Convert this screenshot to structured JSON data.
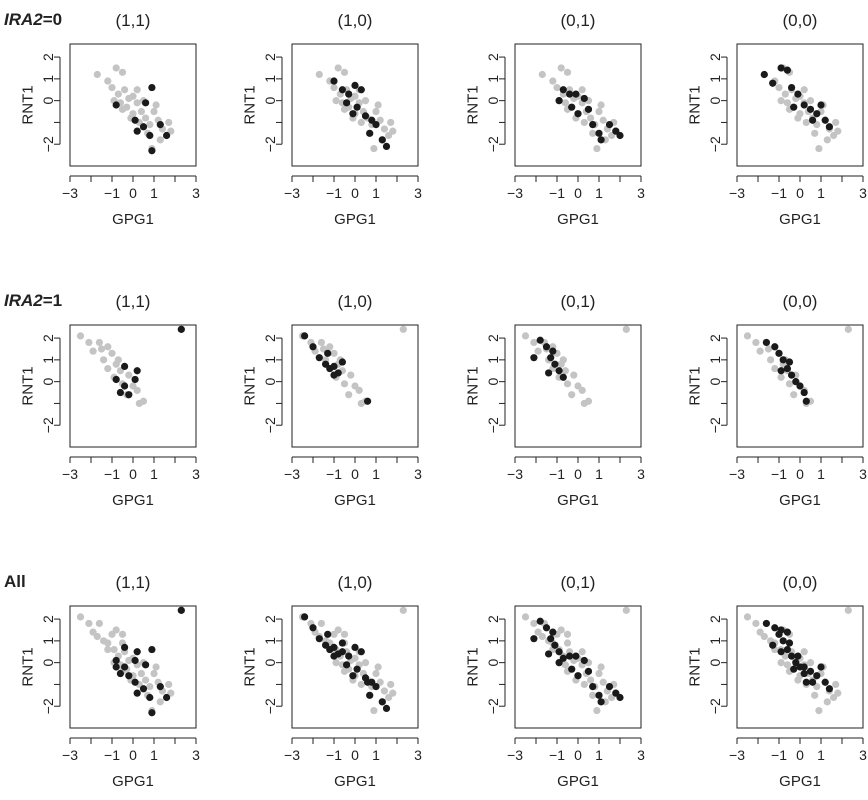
{
  "colors": {
    "background": "#ffffff",
    "axis": "#222222",
    "grey": "#c4c4c4",
    "black": "#1a1a1a"
  },
  "chart_data": {
    "type": "scatter",
    "xlabel": "GPG1",
    "ylabel": "RNT1",
    "x_ticks": [
      "−3",
      "−1",
      "0",
      "1",
      "3"
    ],
    "x_tick_values": [
      -3,
      -2,
      -1,
      0,
      1,
      2,
      3
    ],
    "y_ticks": [
      "−2",
      "0",
      "1",
      "2"
    ],
    "y_tick_values": [
      -2,
      -1,
      0,
      1,
      2
    ],
    "xlim": [
      -3,
      3
    ],
    "ylim": [
      -3,
      2.6
    ],
    "grid": false,
    "panel_titles": [
      "(1,1)",
      "(1,0)",
      "(0,1)",
      "(0,0)"
    ],
    "rows": [
      {
        "label_prefix": "IRA2",
        "label_suffix": "=0",
        "background": [
          [
            -1.7,
            1.2
          ],
          [
            -1.2,
            0.9
          ],
          [
            -0.8,
            1.5
          ],
          [
            -0.5,
            1.3
          ],
          [
            -1.0,
            0.6
          ],
          [
            -0.7,
            0.3
          ],
          [
            -0.4,
            0.5
          ],
          [
            -0.2,
            0.1
          ],
          [
            -0.6,
            -0.1
          ],
          [
            -0.3,
            -0.3
          ],
          [
            0.0,
            0.2
          ],
          [
            0.2,
            -0.1
          ],
          [
            0.4,
            -0.5
          ],
          [
            0.0,
            -0.6
          ],
          [
            0.6,
            -0.8
          ],
          [
            0.8,
            -1.1
          ],
          [
            1.0,
            -0.5
          ],
          [
            1.2,
            -0.9
          ],
          [
            1.4,
            -1.3
          ],
          [
            1.6,
            -1.6
          ],
          [
            1.8,
            -1.4
          ],
          [
            1.3,
            -1.8
          ],
          [
            0.9,
            -2.2
          ],
          [
            0.7,
            -1.5
          ],
          [
            0.3,
            -1.0
          ],
          [
            -0.1,
            -0.8
          ],
          [
            -0.5,
            -0.4
          ],
          [
            0.5,
            0.0
          ],
          [
            0.2,
            0.5
          ],
          [
            -0.9,
            0.0
          ],
          [
            1.7,
            -1.0
          ],
          [
            1.1,
            -0.2
          ]
        ],
        "panels": [
          [
            [
              -0.8,
              -0.2
            ],
            [
              0.1,
              -0.9
            ],
            [
              0.5,
              -1.2
            ],
            [
              0.9,
              0.6
            ],
            [
              0.6,
              -0.1
            ],
            [
              1.3,
              -1.1
            ],
            [
              1.6,
              -1.6
            ],
            [
              0.8,
              -1.6
            ],
            [
              0.9,
              -2.3
            ],
            [
              0.2,
              -1.4
            ]
          ],
          [
            [
              -1.0,
              0.9
            ],
            [
              -0.6,
              0.5
            ],
            [
              -0.3,
              0.3
            ],
            [
              0.0,
              0.7
            ],
            [
              0.3,
              0.5
            ],
            [
              -0.4,
              -0.1
            ],
            [
              0.1,
              -0.3
            ],
            [
              0.5,
              -0.7
            ],
            [
              0.8,
              -0.9
            ],
            [
              1.0,
              -1.1
            ],
            [
              0.7,
              -1.5
            ],
            [
              1.3,
              -1.8
            ],
            [
              1.5,
              -2.1
            ],
            [
              -0.1,
              -0.6
            ]
          ],
          [
            [
              -0.7,
              0.5
            ],
            [
              -0.4,
              0.3
            ],
            [
              -0.1,
              0.3
            ],
            [
              0.3,
              0.1
            ],
            [
              0.5,
              -0.4
            ],
            [
              -0.3,
              -0.3
            ],
            [
              0.0,
              -0.6
            ],
            [
              0.7,
              -1.1
            ],
            [
              1.0,
              -1.5
            ],
            [
              1.5,
              -1.1
            ],
            [
              1.8,
              -1.4
            ],
            [
              2.0,
              -1.6
            ],
            [
              1.1,
              -1.8
            ],
            [
              -0.9,
              0.0
            ]
          ],
          [
            [
              -1.7,
              1.2
            ],
            [
              -1.3,
              0.8
            ],
            [
              -0.9,
              1.5
            ],
            [
              -0.6,
              1.4
            ],
            [
              -0.4,
              0.6
            ],
            [
              -0.1,
              0.3
            ],
            [
              0.2,
              -0.2
            ],
            [
              0.5,
              -0.4
            ],
            [
              0.8,
              -0.6
            ],
            [
              1.0,
              -0.2
            ],
            [
              1.2,
              -0.9
            ],
            [
              0.6,
              -0.9
            ],
            [
              -0.3,
              -0.3
            ],
            [
              1.4,
              -1.2
            ]
          ]
        ]
      },
      {
        "label_prefix": "IRA2",
        "label_suffix": "=1",
        "background": [
          [
            -2.5,
            2.1
          ],
          [
            -2.1,
            1.8
          ],
          [
            -1.9,
            1.4
          ],
          [
            -1.6,
            1.8
          ],
          [
            -1.4,
            1.0
          ],
          [
            -1.2,
            1.6
          ],
          [
            -1.0,
            1.3
          ],
          [
            -0.8,
            0.8
          ],
          [
            -0.6,
            0.5
          ],
          [
            -1.2,
            0.6
          ],
          [
            -0.9,
            0.2
          ],
          [
            -0.5,
            -0.1
          ],
          [
            -0.2,
            0.3
          ],
          [
            0.0,
            -0.2
          ],
          [
            -0.3,
            -0.6
          ],
          [
            0.2,
            -0.4
          ],
          [
            0.5,
            -0.9
          ],
          [
            0.3,
            -1.0
          ],
          [
            -0.7,
            1.0
          ],
          [
            -1.5,
            1.5
          ],
          [
            2.3,
            2.4
          ]
        ],
        "panels": [
          [
            [
              2.3,
              2.4
            ],
            [
              -0.8,
              0.1
            ],
            [
              -0.4,
              -0.2
            ],
            [
              -0.2,
              -0.6
            ],
            [
              0.1,
              0.1
            ],
            [
              0.2,
              0.5
            ],
            [
              -0.4,
              0.7
            ],
            [
              -0.6,
              -0.5
            ]
          ],
          [
            [
              -2.4,
              2.1
            ],
            [
              -2.0,
              1.6
            ],
            [
              -1.7,
              1.1
            ],
            [
              -1.4,
              0.8
            ],
            [
              -1.2,
              0.6
            ],
            [
              -1.0,
              0.7
            ],
            [
              -0.8,
              0.4
            ],
            [
              -1.3,
              1.3
            ],
            [
              0.6,
              -0.9
            ],
            [
              -0.6,
              0.9
            ],
            [
              -1.0,
              0.3
            ]
          ],
          [
            [
              -1.8,
              1.9
            ],
            [
              -1.5,
              1.6
            ],
            [
              -2.1,
              1.1
            ],
            [
              -1.3,
              1.1
            ],
            [
              -1.1,
              0.8
            ],
            [
              -0.9,
              0.5
            ],
            [
              -0.7,
              0.2
            ],
            [
              -1.2,
              1.4
            ],
            [
              -1.4,
              0.4
            ]
          ],
          [
            [
              -1.6,
              1.8
            ],
            [
              -1.2,
              1.6
            ],
            [
              -1.0,
              1.3
            ],
            [
              -0.8,
              1.0
            ],
            [
              -0.6,
              0.6
            ],
            [
              -0.4,
              0.3
            ],
            [
              -0.2,
              0.0
            ],
            [
              0.0,
              -0.2
            ],
            [
              0.2,
              -0.5
            ],
            [
              0.3,
              -0.9
            ],
            [
              -0.9,
              0.5
            ],
            [
              -0.5,
              0.9
            ]
          ]
        ]
      },
      {
        "label_prefix": "All",
        "label_suffix": "",
        "background": [
          [
            -2.5,
            2.1
          ],
          [
            -2.1,
            1.8
          ],
          [
            -1.9,
            1.4
          ],
          [
            -1.7,
            1.2
          ],
          [
            -1.6,
            1.8
          ],
          [
            -1.4,
            1.0
          ],
          [
            -1.2,
            0.9
          ],
          [
            -1.0,
            1.3
          ],
          [
            -0.8,
            1.5
          ],
          [
            -0.5,
            1.3
          ],
          [
            -0.9,
            0.6
          ],
          [
            -0.7,
            0.3
          ],
          [
            -0.4,
            0.5
          ],
          [
            -0.2,
            0.1
          ],
          [
            -0.6,
            -0.1
          ],
          [
            -0.3,
            -0.3
          ],
          [
            0.0,
            0.2
          ],
          [
            0.2,
            -0.1
          ],
          [
            0.4,
            -0.5
          ],
          [
            0.0,
            -0.6
          ],
          [
            0.6,
            -0.8
          ],
          [
            0.8,
            -1.1
          ],
          [
            1.0,
            -0.5
          ],
          [
            1.2,
            -0.9
          ],
          [
            1.4,
            -1.3
          ],
          [
            1.6,
            -1.6
          ],
          [
            1.8,
            -1.4
          ],
          [
            1.3,
            -1.8
          ],
          [
            0.9,
            -2.2
          ],
          [
            0.7,
            -1.5
          ],
          [
            0.3,
            -1.0
          ],
          [
            -0.1,
            -0.8
          ],
          [
            -0.5,
            -0.4
          ],
          [
            0.5,
            0.0
          ],
          [
            0.2,
            0.5
          ],
          [
            -0.9,
            0.0
          ],
          [
            1.7,
            -1.0
          ],
          [
            1.1,
            -0.2
          ],
          [
            -1.2,
            0.6
          ],
          [
            -0.5,
            0.9
          ],
          [
            2.3,
            2.4
          ]
        ],
        "panels": [
          [
            [
              2.3,
              2.4
            ],
            [
              -0.8,
              0.1
            ],
            [
              -0.4,
              -0.2
            ],
            [
              -0.2,
              -0.6
            ],
            [
              0.1,
              0.1
            ],
            [
              0.2,
              0.5
            ],
            [
              -0.4,
              0.7
            ],
            [
              -0.6,
              -0.5
            ],
            [
              -0.8,
              -0.2
            ],
            [
              0.1,
              -0.9
            ],
            [
              0.5,
              -1.2
            ],
            [
              0.9,
              0.6
            ],
            [
              0.6,
              -0.1
            ],
            [
              1.3,
              -1.1
            ],
            [
              1.6,
              -1.6
            ],
            [
              0.8,
              -1.6
            ],
            [
              0.9,
              -2.3
            ],
            [
              0.2,
              -1.4
            ]
          ],
          [
            [
              -2.4,
              2.1
            ],
            [
              -2.0,
              1.6
            ],
            [
              -1.7,
              1.1
            ],
            [
              -1.4,
              0.8
            ],
            [
              -1.2,
              0.6
            ],
            [
              -1.0,
              0.7
            ],
            [
              -0.8,
              0.4
            ],
            [
              -1.3,
              1.3
            ],
            [
              0.6,
              -0.9
            ],
            [
              -0.6,
              0.9
            ],
            [
              -1.0,
              0.3
            ],
            [
              -0.6,
              0.5
            ],
            [
              -0.3,
              0.3
            ],
            [
              0.0,
              0.7
            ],
            [
              0.3,
              0.5
            ],
            [
              -0.4,
              -0.1
            ],
            [
              0.1,
              -0.3
            ],
            [
              0.5,
              -0.7
            ],
            [
              0.8,
              -0.9
            ],
            [
              1.0,
              -1.1
            ],
            [
              0.7,
              -1.5
            ],
            [
              1.3,
              -1.8
            ],
            [
              1.5,
              -2.1
            ],
            [
              -0.1,
              -0.6
            ]
          ],
          [
            [
              -1.8,
              1.9
            ],
            [
              -1.5,
              1.6
            ],
            [
              -2.1,
              1.1
            ],
            [
              -1.3,
              1.1
            ],
            [
              -1.1,
              0.8
            ],
            [
              -0.9,
              0.5
            ],
            [
              -0.7,
              0.2
            ],
            [
              -1.2,
              1.4
            ],
            [
              -1.4,
              0.4
            ],
            [
              -0.4,
              0.3
            ],
            [
              -0.1,
              0.3
            ],
            [
              0.3,
              0.1
            ],
            [
              0.5,
              -0.4
            ],
            [
              -0.3,
              -0.3
            ],
            [
              0.0,
              -0.6
            ],
            [
              0.7,
              -1.1
            ],
            [
              1.0,
              -1.5
            ],
            [
              1.5,
              -1.1
            ],
            [
              1.8,
              -1.4
            ],
            [
              2.0,
              -1.6
            ],
            [
              1.1,
              -1.8
            ],
            [
              -0.9,
              0.0
            ]
          ],
          [
            [
              -1.6,
              1.8
            ],
            [
              -1.2,
              1.6
            ],
            [
              -1.0,
              1.3
            ],
            [
              -0.8,
              1.0
            ],
            [
              -0.6,
              0.6
            ],
            [
              -0.4,
              0.3
            ],
            [
              -0.2,
              0.0
            ],
            [
              0.0,
              -0.2
            ],
            [
              0.2,
              -0.5
            ],
            [
              0.3,
              -0.9
            ],
            [
              -0.9,
              0.5
            ],
            [
              -0.5,
              0.9
            ],
            [
              -1.3,
              0.8
            ],
            [
              -0.9,
              1.5
            ],
            [
              -0.6,
              1.4
            ],
            [
              -0.1,
              0.3
            ],
            [
              0.2,
              -0.2
            ],
            [
              0.5,
              -0.4
            ],
            [
              0.8,
              -0.6
            ],
            [
              1.0,
              -0.2
            ],
            [
              1.2,
              -0.9
            ],
            [
              0.6,
              -0.9
            ],
            [
              -0.3,
              -0.3
            ],
            [
              1.4,
              -1.2
            ]
          ]
        ]
      }
    ]
  }
}
